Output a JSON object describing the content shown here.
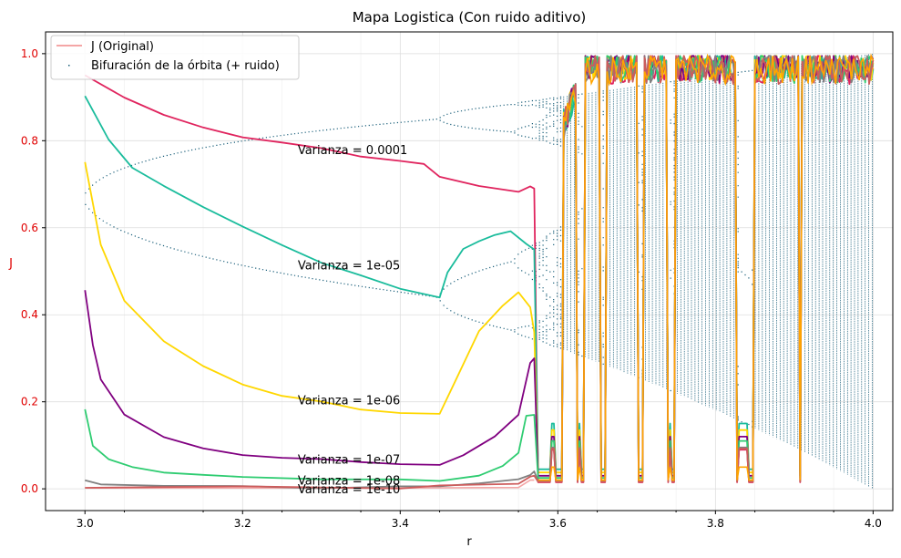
{
  "chart_data": {
    "type": "line",
    "title": "Mapa Logistica (Con ruido aditivo)",
    "xlabel": "r",
    "ylabel": "J",
    "xlim": [
      2.95,
      4.025
    ],
    "ylim": [
      -0.05,
      1.05
    ],
    "xticks": [
      "3.0",
      "3.2",
      "3.4",
      "3.6",
      "3.8",
      "4.0"
    ],
    "yticks": [
      "0.0",
      "0.2",
      "0.4",
      "0.6",
      "0.8",
      "1.0"
    ],
    "grid": true,
    "legend_position": "top-left",
    "legend": [
      "J (Original)",
      "Bifuración de la órbita (+ ruido)"
    ],
    "colors": {
      "original": "#f4a6a6",
      "bifurcation": "#1a5f7a",
      "ytick": "#e00000"
    },
    "windows": [
      [
        3.5695,
        3.592,
        3.595,
        3.605
      ],
      [
        3.6245,
        3.626,
        3.628,
        3.633
      ],
      [
        3.6545,
        3.6555,
        3.657,
        3.661
      ],
      [
        3.7015,
        3.7025,
        3.704,
        3.708
      ],
      [
        3.7395,
        3.741,
        3.743,
        3.749
      ],
      [
        3.8265,
        3.828,
        3.8415,
        3.8495
      ],
      [
        3.905,
        3.9055,
        3.9065,
        3.909
      ]
    ],
    "annotations": [
      {
        "text": "Varianza = 0.0001",
        "x": 3.27,
        "y": 0.78
      },
      {
        "text": "Varianza = 1e-05",
        "x": 3.27,
        "y": 0.515
      },
      {
        "text": "Varianza = 1e-06",
        "x": 3.27,
        "y": 0.205
      },
      {
        "text": "Varianza = 1e-07",
        "x": 3.27,
        "y": 0.068
      },
      {
        "text": "Varianza = 1e-08",
        "x": 3.27,
        "y": 0.02
      },
      {
        "text": "Varianza = 1e-10",
        "x": 3.27,
        "y": 0.0
      }
    ],
    "series": [
      {
        "name": "J (Original)",
        "color": "#f4a6a6",
        "x": [
          3.0,
          3.2,
          3.4,
          3.55,
          3.565,
          3.57
        ],
        "y": [
          0.002,
          0.002,
          0.002,
          0.003,
          0.02,
          0.02
        ]
      },
      {
        "color": "#e0245e",
        "x": [
          3.0,
          3.05,
          3.1,
          3.15,
          3.2,
          3.25,
          3.3,
          3.35,
          3.4,
          3.43,
          3.45,
          3.5,
          3.55,
          3.565,
          3.57
        ],
        "y": [
          0.95,
          0.9,
          0.86,
          0.83,
          0.81,
          0.795,
          0.78,
          0.765,
          0.755,
          0.745,
          0.715,
          0.695,
          0.685,
          0.695,
          0.69
        ]
      },
      {
        "color": "#1abc9c",
        "x": [
          3.0,
          3.03,
          3.06,
          3.1,
          3.15,
          3.2,
          3.25,
          3.3,
          3.35,
          3.4,
          3.45,
          3.46,
          3.48,
          3.5,
          3.52,
          3.54,
          3.56,
          3.57
        ],
        "y": [
          0.9,
          0.8,
          0.74,
          0.695,
          0.65,
          0.6,
          0.56,
          0.52,
          0.49,
          0.46,
          0.44,
          0.5,
          0.55,
          0.57,
          0.585,
          0.59,
          0.56,
          0.55
        ]
      },
      {
        "color": "#ffd700",
        "x": [
          3.0,
          3.02,
          3.05,
          3.1,
          3.15,
          3.2,
          3.25,
          3.3,
          3.35,
          3.4,
          3.45,
          3.47,
          3.5,
          3.53,
          3.55,
          3.565,
          3.57
        ],
        "y": [
          0.75,
          0.56,
          0.43,
          0.34,
          0.28,
          0.24,
          0.215,
          0.2,
          0.185,
          0.175,
          0.17,
          0.25,
          0.36,
          0.42,
          0.45,
          0.42,
          0.36
        ]
      },
      {
        "color": "#800080",
        "x": [
          3.0,
          3.01,
          3.02,
          3.05,
          3.1,
          3.15,
          3.2,
          3.25,
          3.3,
          3.35,
          3.4,
          3.45,
          3.48,
          3.52,
          3.55,
          3.565,
          3.57
        ],
        "y": [
          0.455,
          0.33,
          0.25,
          0.17,
          0.12,
          0.095,
          0.08,
          0.072,
          0.066,
          0.062,
          0.058,
          0.058,
          0.08,
          0.12,
          0.17,
          0.29,
          0.3
        ]
      },
      {
        "color": "#2ecc71",
        "x": [
          3.0,
          3.01,
          3.03,
          3.06,
          3.1,
          3.15,
          3.2,
          3.3,
          3.4,
          3.45,
          3.5,
          3.53,
          3.55,
          3.56,
          3.57
        ],
        "y": [
          0.18,
          0.1,
          0.07,
          0.05,
          0.04,
          0.032,
          0.028,
          0.024,
          0.02,
          0.02,
          0.03,
          0.05,
          0.08,
          0.17,
          0.17
        ]
      },
      {
        "color": "#808080",
        "x": [
          3.0,
          3.02,
          3.1,
          3.2,
          3.3,
          3.4,
          3.45,
          3.5,
          3.55,
          3.565,
          3.57
        ],
        "y": [
          0.018,
          0.01,
          0.006,
          0.005,
          0.004,
          0.004,
          0.005,
          0.01,
          0.02,
          0.03,
          0.04
        ]
      },
      {
        "color": "#cd5c5c",
        "x": [
          3.0,
          3.2,
          3.4,
          3.45,
          3.55,
          3.565,
          3.57
        ],
        "y": [
          0.003,
          0.003,
          0.003,
          0.006,
          0.01,
          0.025,
          0.03
        ]
      }
    ]
  }
}
